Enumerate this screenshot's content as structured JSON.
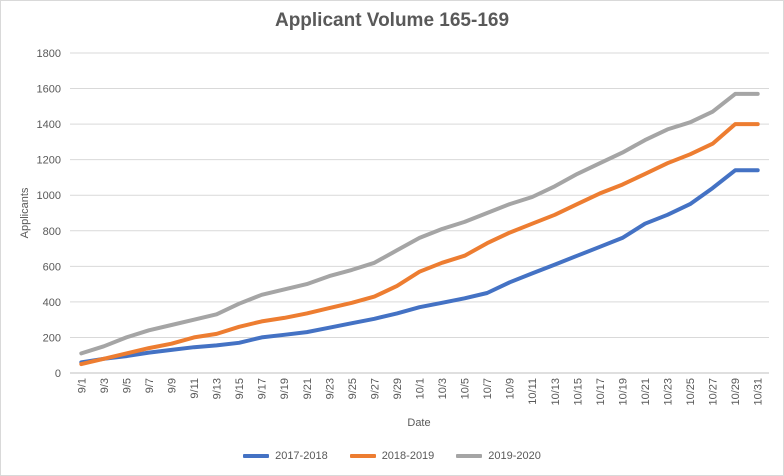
{
  "chart_data": {
    "type": "line",
    "title": "Applicant Volume 165-169",
    "xlabel": "Date",
    "ylabel": "Applicants",
    "ylim": [
      0,
      1800
    ],
    "yticks": [
      0,
      200,
      400,
      600,
      800,
      1000,
      1200,
      1400,
      1600,
      1800
    ],
    "grid": "horizontal",
    "legend": "bottom-center",
    "x_tick_labels": [
      "9/1",
      "9/3",
      "9/5",
      "9/7",
      "9/9",
      "9/11",
      "9/13",
      "9/15",
      "9/17",
      "9/19",
      "9/21",
      "9/23",
      "9/25",
      "9/27",
      "9/29",
      "10/1",
      "10/3",
      "10/5",
      "10/7",
      "10/9",
      "10/11",
      "10/13",
      "10/15",
      "10/17",
      "10/19",
      "10/21",
      "10/23",
      "10/25",
      "10/27",
      "10/29",
      "10/31"
    ],
    "series": [
      {
        "name": "2017-2018",
        "color": "#4472c4",
        "values": [
          60,
          80,
          95,
          115,
          130,
          145,
          155,
          170,
          200,
          215,
          230,
          255,
          280,
          305,
          335,
          370,
          395,
          420,
          450,
          510,
          560,
          610,
          660,
          710,
          760,
          840,
          890,
          950,
          1040,
          1140,
          1140
        ]
      },
      {
        "name": "2018-2019",
        "color": "#ed7d31",
        "values": [
          50,
          80,
          110,
          140,
          165,
          200,
          220,
          260,
          290,
          310,
          335,
          365,
          395,
          430,
          490,
          570,
          620,
          660,
          730,
          790,
          840,
          890,
          950,
          1010,
          1060,
          1120,
          1180,
          1230,
          1290,
          1400,
          1400
        ]
      },
      {
        "name": "2019-2020",
        "color": "#a5a5a5",
        "values": [
          110,
          150,
          200,
          240,
          270,
          300,
          330,
          390,
          440,
          470,
          500,
          545,
          580,
          620,
          690,
          760,
          810,
          850,
          900,
          950,
          990,
          1050,
          1120,
          1180,
          1240,
          1310,
          1370,
          1410,
          1470,
          1570,
          1570
        ]
      }
    ]
  }
}
